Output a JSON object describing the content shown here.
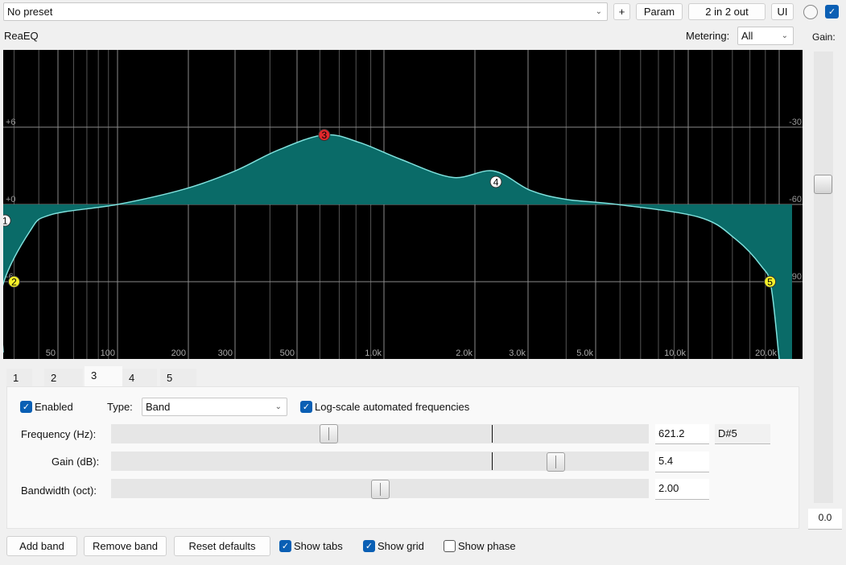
{
  "topbar": {
    "preset": "No preset",
    "add_label": "+",
    "param_label": "Param",
    "routing_label": "2 in 2 out",
    "ui_label": "UI",
    "enable_checked": true
  },
  "plugin_name": "ReaEQ",
  "metering": {
    "label": "Metering:",
    "value": "All"
  },
  "gain": {
    "label": "Gain:",
    "value": "0.0",
    "level_db": 0.0
  },
  "chart_data": {
    "type": "line",
    "x_scale": "log",
    "x_ticks": [
      {
        "f": 50,
        "label": "50"
      },
      {
        "f": 100,
        "label": "100"
      },
      {
        "f": 200,
        "label": "200"
      },
      {
        "f": 300,
        "label": "300"
      },
      {
        "f": 500,
        "label": "500"
      },
      {
        "f": 1000,
        "label": "1.0k"
      },
      {
        "f": 2000,
        "label": "2.0k"
      },
      {
        "f": 3000,
        "label": "3.0k"
      },
      {
        "f": 5000,
        "label": "5.0k"
      },
      {
        "f": 10000,
        "label": "10.0k"
      },
      {
        "f": 20000,
        "label": "20.0k"
      }
    ],
    "y_ticks_left": [
      {
        "db": 6,
        "label": "+6"
      },
      {
        "db": 0,
        "label": "+0"
      },
      {
        "db": -6,
        "label": "-6"
      }
    ],
    "y_ticks_right": [
      {
        "db": 6,
        "label": "-30"
      },
      {
        "db": 0,
        "label": "-60"
      },
      {
        "db": -6,
        "label": "-90"
      }
    ],
    "ylim": [
      -12,
      12
    ],
    "grid": true,
    "curve": [
      [
        26,
        -6.6
      ],
      [
        36,
        -2.1
      ],
      [
        46,
        -0.8
      ],
      [
        100,
        0
      ],
      [
        193,
        1.2
      ],
      [
        300,
        2.6
      ],
      [
        426,
        4.2
      ],
      [
        621,
        5.4
      ],
      [
        825,
        4.8
      ],
      [
        1137,
        3.5
      ],
      [
        1685,
        2.1
      ],
      [
        2303,
        2.6
      ],
      [
        3050,
        1.1
      ],
      [
        3990,
        0.4
      ],
      [
        5880,
        0
      ],
      [
        10900,
        -1
      ],
      [
        14360,
        -2.7
      ],
      [
        17470,
        -4.8
      ],
      [
        18800,
        -6.4
      ],
      [
        20000,
        -12
      ]
    ],
    "bands": [
      {
        "label": "1",
        "f": 27,
        "db": -1.25,
        "color": "#ffffff"
      },
      {
        "label": "2",
        "f": 30,
        "db": -6,
        "color": "#f5f02a"
      },
      {
        "label": "3",
        "f": 621.2,
        "db": 5.4,
        "color": "#e0282c"
      },
      {
        "label": "4",
        "f": 2347,
        "db": 1.75,
        "color": "#ffffff"
      },
      {
        "label": "5",
        "f": 18650,
        "db": -6,
        "color": "#f5f02a"
      }
    ],
    "curve_color": "#7ee0dc",
    "fill_color": "#0a6b68"
  },
  "tabs": [
    "1",
    "2",
    "3",
    "4",
    "5"
  ],
  "selected_tab": "3",
  "band": {
    "enabled_label": "Enabled",
    "enabled": true,
    "type_label": "Type:",
    "type_value": "Band",
    "logscale_label": "Log-scale automated frequencies",
    "logscale": true,
    "freq_label": "Frequency (Hz):",
    "freq_value": "621.2",
    "freq_note": "D#5",
    "gain_label": "Gain (dB):",
    "gain_value": "5.4",
    "bw_label": "Bandwidth (oct):",
    "bw_value": "2.00"
  },
  "footer": {
    "add_band": "Add band",
    "remove_band": "Remove band",
    "reset_defaults": "Reset defaults",
    "show_tabs": "Show tabs",
    "show_tabs_checked": true,
    "show_grid": "Show grid",
    "show_grid_checked": true,
    "show_phase": "Show phase",
    "show_phase_checked": false
  }
}
